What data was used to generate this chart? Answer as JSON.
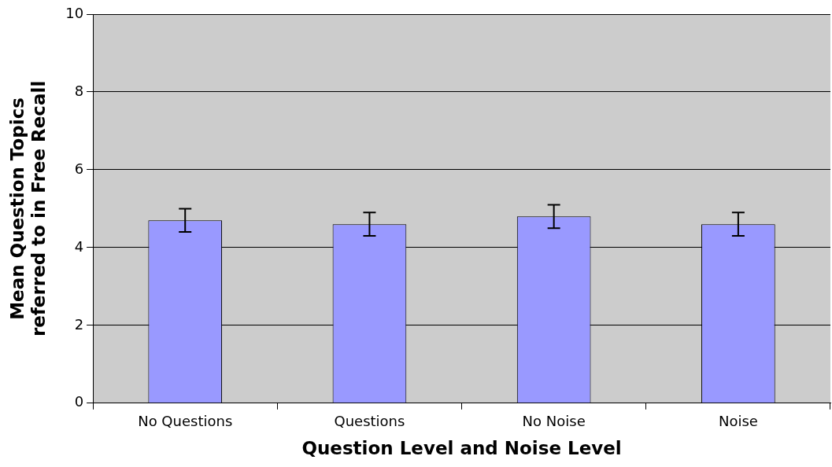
{
  "chart_data": {
    "type": "bar",
    "xlabel": "Question Level and Noise Level",
    "ylabel": "Mean Question Topics referred to in Free Recall",
    "categories": [
      "No Questions",
      "Questions",
      "No Noise",
      "Noise"
    ],
    "values": [
      4.7,
      4.6,
      4.8,
      4.6
    ],
    "errors": [
      0.3,
      0.3,
      0.3,
      0.3
    ],
    "color": "#9999ff",
    "ylim": [
      0,
      10
    ],
    "yticks": [
      0,
      2,
      4,
      6,
      8,
      10
    ],
    "grid": "y",
    "legend": false
  }
}
